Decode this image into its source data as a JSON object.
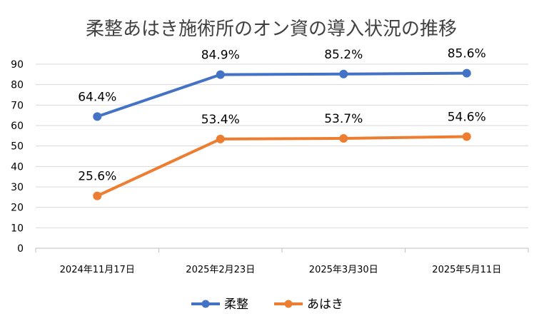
{
  "chart_data": {
    "type": "line",
    "title": "柔整あはき施術所のオン資の導入状況の推移",
    "categories": [
      "2024年11月17日",
      "2025年2月23日",
      "2025年3月30日",
      "2025年5月11日"
    ],
    "series": [
      {
        "name": "柔整",
        "color": "#4472C4",
        "values": [
          64.4,
          84.9,
          85.2,
          85.6
        ],
        "labels": [
          "64.4%",
          "84.9%",
          "85.2%",
          "85.6%"
        ]
      },
      {
        "name": "あはき",
        "color": "#ED7D31",
        "values": [
          25.6,
          53.4,
          53.7,
          54.6
        ],
        "labels": [
          "25.6%",
          "53.4%",
          "53.7%",
          "54.6%"
        ]
      }
    ],
    "ylim": [
      0,
      90
    ],
    "yticks": [
      "0",
      "10",
      "20",
      "30",
      "40",
      "50",
      "60",
      "70",
      "80",
      "90"
    ],
    "grid": true,
    "legend_position": "bottom",
    "gridline_color": "#D9D9D9",
    "axis_color": "#BFBFBF"
  }
}
